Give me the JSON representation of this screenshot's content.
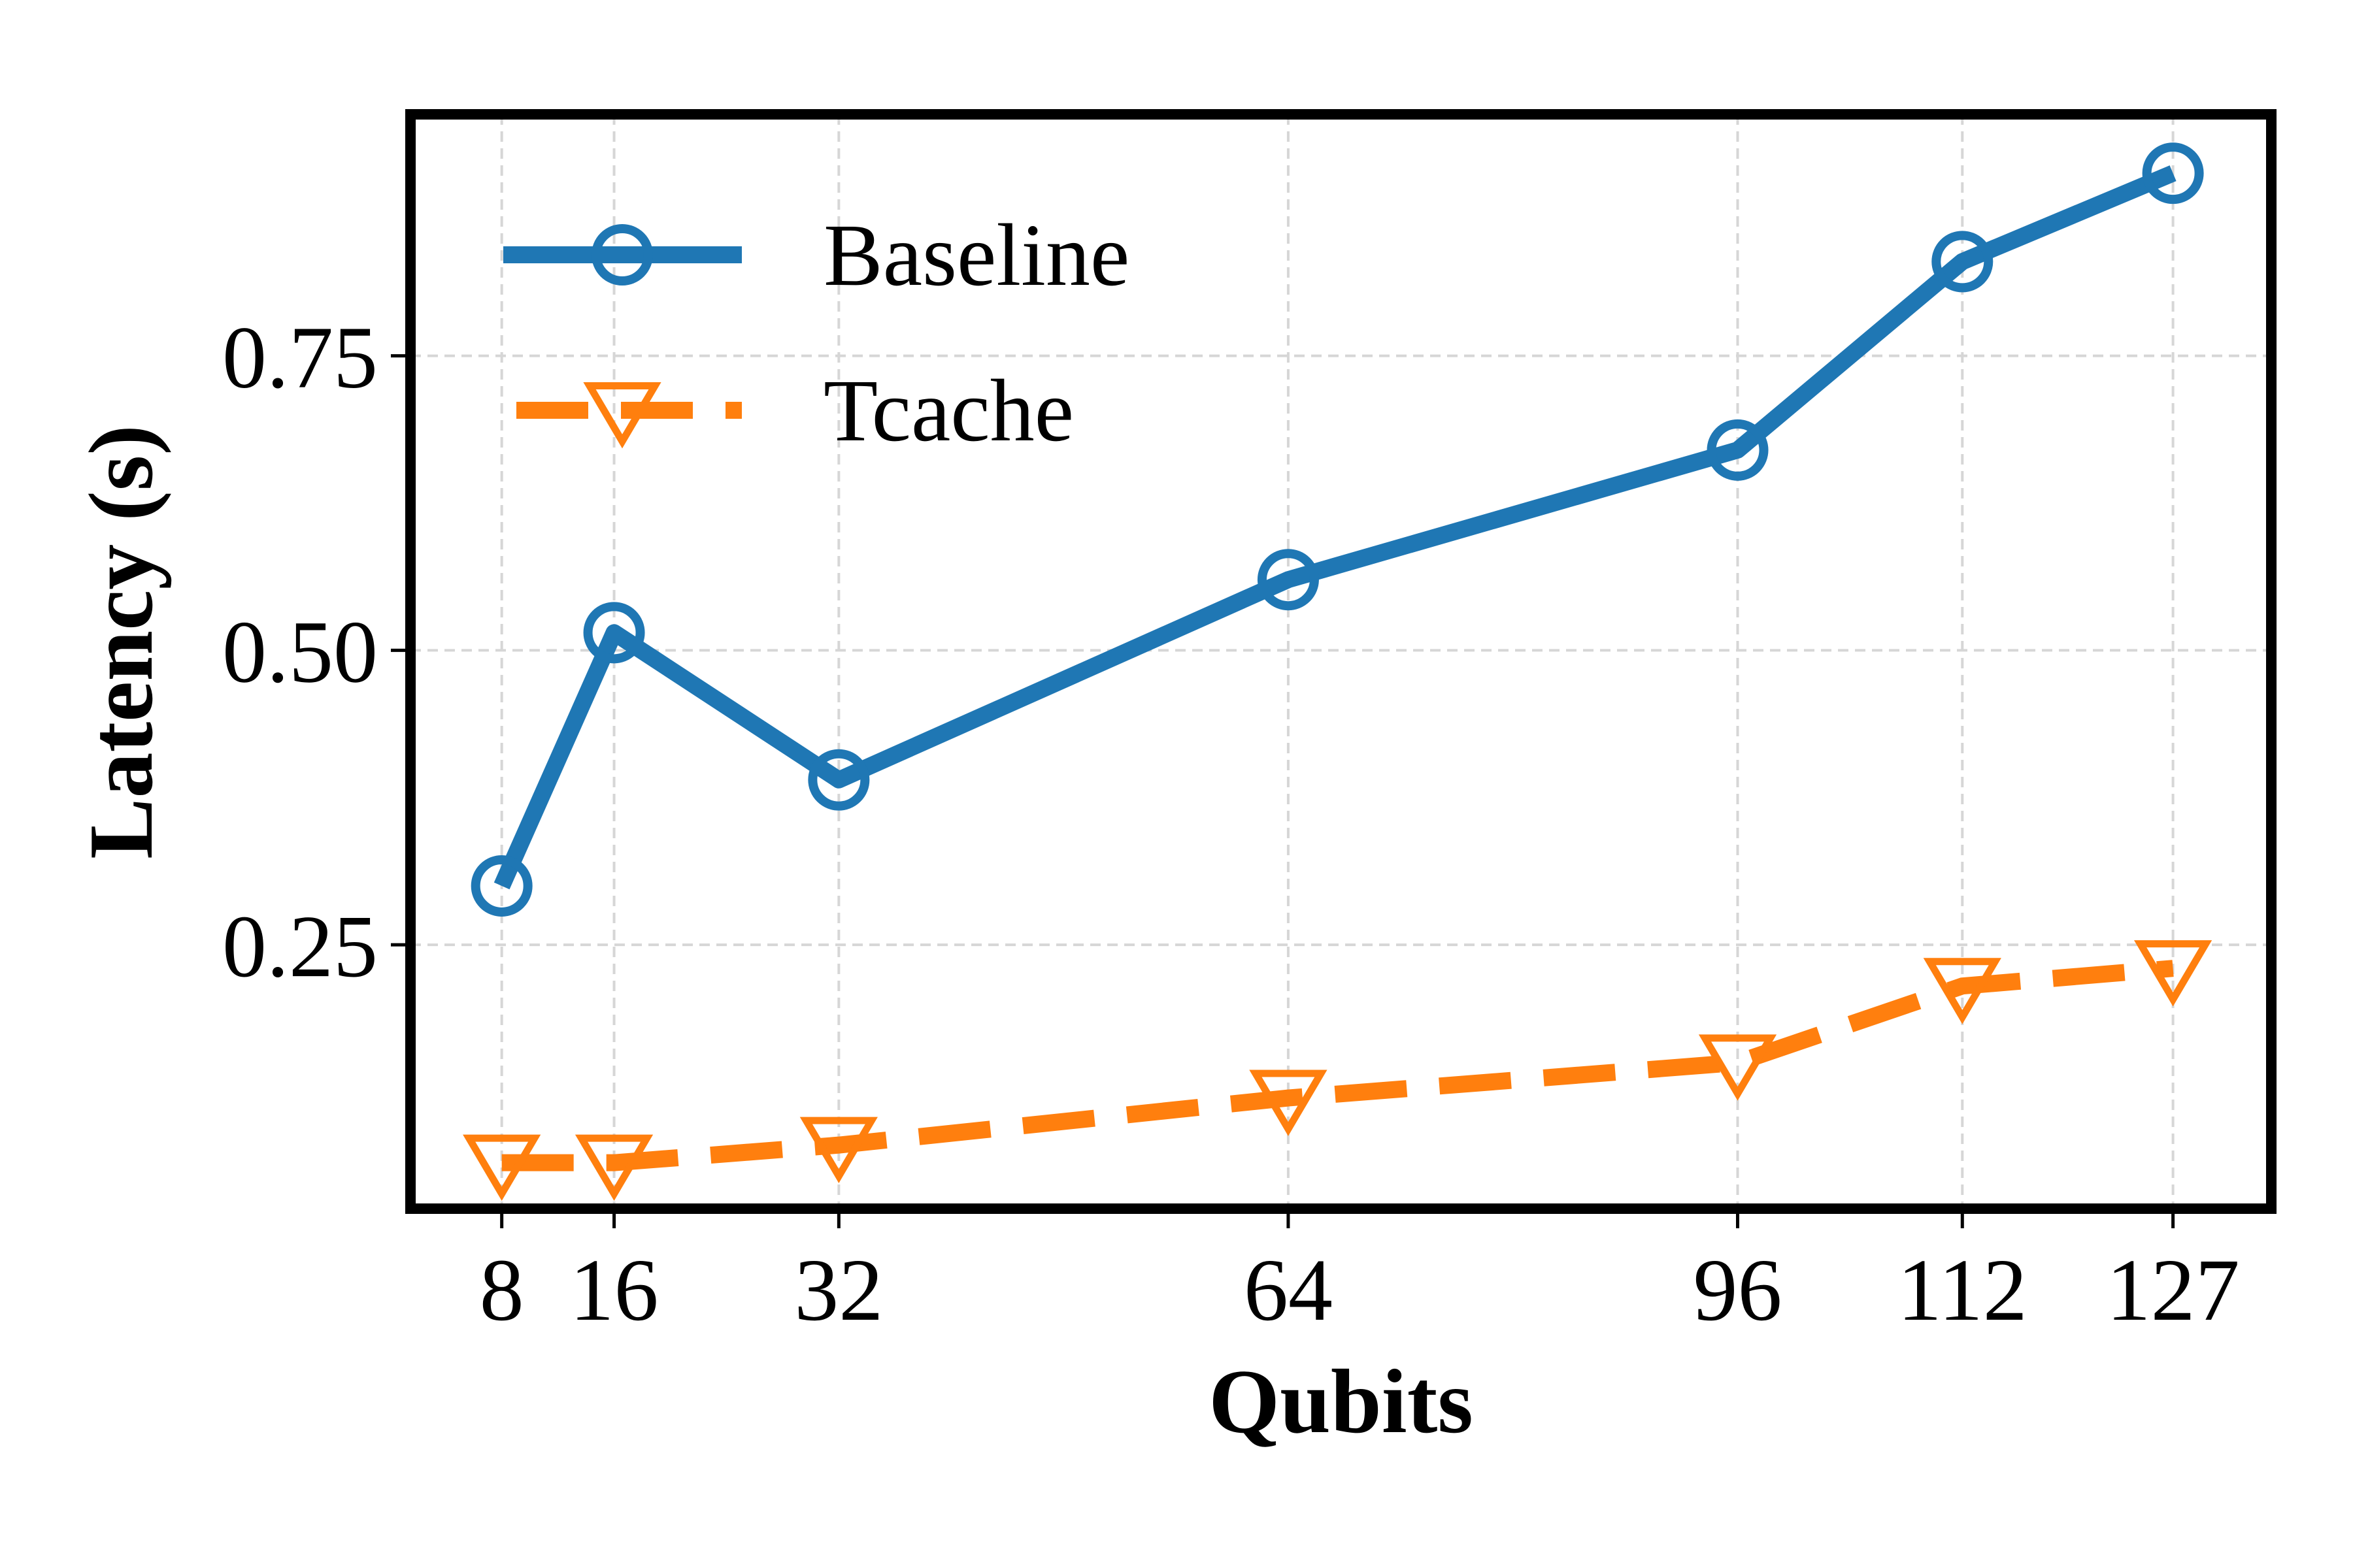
{
  "chart_data": {
    "type": "line",
    "xlabel": "Qubits",
    "ylabel": "Latency (s)",
    "x": [
      8,
      16,
      32,
      64,
      96,
      112,
      127
    ],
    "x_ticks": [
      "8",
      "16",
      "32",
      "64",
      "96",
      "112",
      "127"
    ],
    "y_ticks": [
      "0.25",
      "0.50",
      "0.75"
    ],
    "y_tick_values": [
      0.25,
      0.5,
      0.75
    ],
    "xlim": [
      1.5,
      134
    ],
    "ylim": [
      0.026,
      0.955
    ],
    "grid": true,
    "legend_position": "top-left",
    "series": [
      {
        "name": "Baseline",
        "values": [
          0.3,
          0.515,
          0.39,
          0.56,
          0.67,
          0.83,
          0.905
        ],
        "color": "#1f77b4",
        "marker": "circle-open",
        "line_style": "solid"
      },
      {
        "name": "Tcache",
        "values": [
          0.065,
          0.065,
          0.08,
          0.12,
          0.15,
          0.215,
          0.23
        ],
        "color": "#ff7f0e",
        "marker": "triangle-down-open",
        "line_style": "dashed"
      }
    ]
  }
}
